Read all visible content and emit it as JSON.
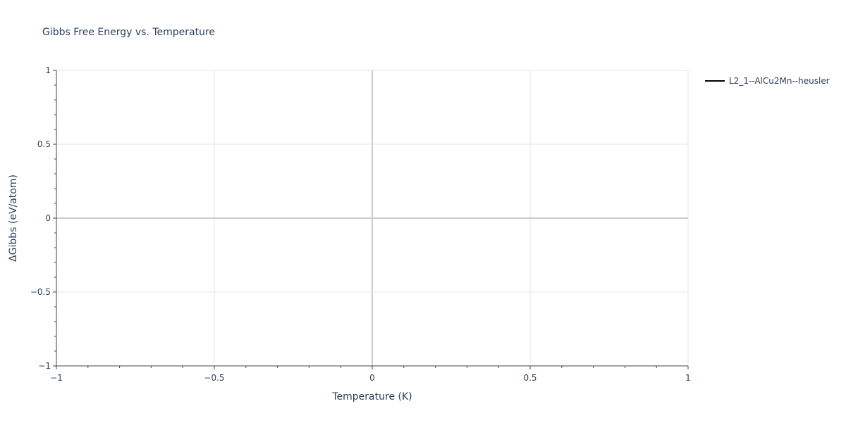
{
  "chart_data": {
    "type": "line",
    "title": "Gibbs Free Energy vs. Temperature",
    "xlabel": "Temperature (K)",
    "ylabel": "ΔGibbs (eV/atom)",
    "xlim": [
      -1,
      1
    ],
    "ylim": [
      -1,
      1
    ],
    "x_ticks": [
      -1,
      -0.5,
      0,
      0.5,
      1
    ],
    "x_tick_labels": [
      "−1",
      "−0.5",
      "0",
      "0.5",
      "1"
    ],
    "y_ticks": [
      -1,
      -0.5,
      0,
      0.5,
      1
    ],
    "y_tick_labels": [
      "−1",
      "−0.5",
      "0",
      "0.5",
      "1"
    ],
    "grid": true,
    "legend_position": "top-right",
    "series": [
      {
        "name": "L2_1--AlCu2Mn--heusler",
        "color": "#000000",
        "x": [],
        "y": []
      }
    ]
  }
}
